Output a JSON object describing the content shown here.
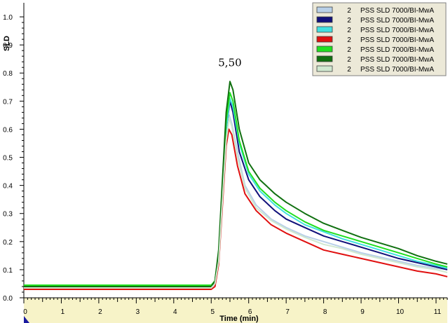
{
  "chart_data": {
    "type": "line",
    "xlabel": "Time (min)",
    "ylabel": "SLD",
    "xlim": [
      0,
      11.3
    ],
    "ylim": [
      0,
      1.05
    ],
    "x_ticks": [
      0,
      1,
      2,
      3,
      4,
      5,
      6,
      7,
      8,
      9,
      10,
      11
    ],
    "y_ticks": [
      0.0,
      0.1,
      0.2,
      0.3,
      0.4,
      0.5,
      0.6,
      0.7,
      0.8,
      0.9,
      1.0
    ],
    "grid": false,
    "legend_position": "top-right",
    "annotations": [
      {
        "text": "5,50",
        "x": 5.5,
        "y": 0.78
      }
    ],
    "series": [
      {
        "name": "PSS SLD 7000/BI-MwA",
        "count": "2",
        "color": "#b8d0e8",
        "points": [
          [
            0,
            0.04
          ],
          [
            1,
            0.04
          ],
          [
            2,
            0.04
          ],
          [
            3,
            0.04
          ],
          [
            4,
            0.04
          ],
          [
            5,
            0.04
          ],
          [
            5.1,
            0.05
          ],
          [
            5.2,
            0.14
          ],
          [
            5.3,
            0.36
          ],
          [
            5.4,
            0.57
          ],
          [
            5.48,
            0.65
          ],
          [
            5.55,
            0.62
          ],
          [
            5.7,
            0.52
          ],
          [
            5.9,
            0.4
          ],
          [
            6.2,
            0.33
          ],
          [
            6.6,
            0.28
          ],
          [
            7,
            0.25
          ],
          [
            7.5,
            0.22
          ],
          [
            8,
            0.2
          ],
          [
            8.5,
            0.18
          ],
          [
            9,
            0.16
          ],
          [
            9.5,
            0.145
          ],
          [
            10,
            0.13
          ],
          [
            10.5,
            0.115
          ],
          [
            11,
            0.105
          ],
          [
            11.3,
            0.1
          ]
        ]
      },
      {
        "name": "PSS SLD 7000/BI-MwA",
        "count": "2",
        "color": "#10107a",
        "points": [
          [
            0,
            0.04
          ],
          [
            1,
            0.04
          ],
          [
            2,
            0.04
          ],
          [
            3,
            0.04
          ],
          [
            4,
            0.04
          ],
          [
            5,
            0.04
          ],
          [
            5.1,
            0.05
          ],
          [
            5.2,
            0.15
          ],
          [
            5.3,
            0.38
          ],
          [
            5.4,
            0.6
          ],
          [
            5.5,
            0.7
          ],
          [
            5.58,
            0.66
          ],
          [
            5.75,
            0.52
          ],
          [
            6,
            0.42
          ],
          [
            6.3,
            0.36
          ],
          [
            6.7,
            0.31
          ],
          [
            7,
            0.28
          ],
          [
            7.5,
            0.25
          ],
          [
            8,
            0.22
          ],
          [
            8.5,
            0.2
          ],
          [
            9,
            0.18
          ],
          [
            9.5,
            0.16
          ],
          [
            10,
            0.14
          ],
          [
            10.5,
            0.125
          ],
          [
            11,
            0.11
          ],
          [
            11.3,
            0.1
          ]
        ]
      },
      {
        "name": "PSS SLD 7000/BI-MwA",
        "count": "2",
        "color": "#40e0e0",
        "points": [
          [
            0,
            0.035
          ],
          [
            1,
            0.035
          ],
          [
            2,
            0.035
          ],
          [
            3,
            0.035
          ],
          [
            4,
            0.035
          ],
          [
            5,
            0.035
          ],
          [
            5.1,
            0.05
          ],
          [
            5.2,
            0.15
          ],
          [
            5.3,
            0.38
          ],
          [
            5.4,
            0.6
          ],
          [
            5.5,
            0.71
          ],
          [
            5.58,
            0.68
          ],
          [
            5.75,
            0.55
          ],
          [
            6,
            0.44
          ],
          [
            6.3,
            0.38
          ],
          [
            6.7,
            0.33
          ],
          [
            7,
            0.3
          ],
          [
            7.5,
            0.26
          ],
          [
            8,
            0.235
          ],
          [
            8.5,
            0.21
          ],
          [
            9,
            0.19
          ],
          [
            9.5,
            0.17
          ],
          [
            10,
            0.15
          ],
          [
            10.5,
            0.13
          ],
          [
            11,
            0.115
          ],
          [
            11.3,
            0.105
          ]
        ]
      },
      {
        "name": "PSS SLD 7000/BI-MwA",
        "count": "2",
        "color": "#e01010",
        "points": [
          [
            0,
            0.03
          ],
          [
            1,
            0.03
          ],
          [
            2,
            0.03
          ],
          [
            3,
            0.03
          ],
          [
            4,
            0.03
          ],
          [
            5,
            0.03
          ],
          [
            5.1,
            0.04
          ],
          [
            5.2,
            0.12
          ],
          [
            5.3,
            0.33
          ],
          [
            5.4,
            0.54
          ],
          [
            5.47,
            0.6
          ],
          [
            5.55,
            0.58
          ],
          [
            5.7,
            0.47
          ],
          [
            5.9,
            0.37
          ],
          [
            6.2,
            0.31
          ],
          [
            6.6,
            0.26
          ],
          [
            7,
            0.23
          ],
          [
            7.5,
            0.2
          ],
          [
            8,
            0.17
          ],
          [
            8.5,
            0.155
          ],
          [
            9,
            0.14
          ],
          [
            9.5,
            0.125
          ],
          [
            10,
            0.11
          ],
          [
            10.5,
            0.095
          ],
          [
            11,
            0.085
          ],
          [
            11.3,
            0.075
          ]
        ]
      },
      {
        "name": "PSS SLD 7000/BI-MwA",
        "count": "2",
        "color": "#20e020",
        "points": [
          [
            0,
            0.045
          ],
          [
            1,
            0.045
          ],
          [
            2,
            0.045
          ],
          [
            3,
            0.045
          ],
          [
            4,
            0.045
          ],
          [
            5,
            0.045
          ],
          [
            5.1,
            0.06
          ],
          [
            5.2,
            0.16
          ],
          [
            5.3,
            0.4
          ],
          [
            5.4,
            0.63
          ],
          [
            5.5,
            0.73
          ],
          [
            5.58,
            0.7
          ],
          [
            5.75,
            0.56
          ],
          [
            6,
            0.45
          ],
          [
            6.3,
            0.39
          ],
          [
            6.7,
            0.34
          ],
          [
            7,
            0.31
          ],
          [
            7.5,
            0.27
          ],
          [
            8,
            0.24
          ],
          [
            8.5,
            0.22
          ],
          [
            9,
            0.2
          ],
          [
            9.5,
            0.18
          ],
          [
            10,
            0.16
          ],
          [
            10.5,
            0.14
          ],
          [
            11,
            0.12
          ],
          [
            11.3,
            0.11
          ]
        ]
      },
      {
        "name": "PSS SLD 7000/BI-MwA",
        "count": "2",
        "color": "#107010",
        "points": [
          [
            0,
            0.04
          ],
          [
            1,
            0.04
          ],
          [
            2,
            0.04
          ],
          [
            3,
            0.04
          ],
          [
            4,
            0.04
          ],
          [
            5,
            0.04
          ],
          [
            5.1,
            0.06
          ],
          [
            5.2,
            0.17
          ],
          [
            5.3,
            0.42
          ],
          [
            5.4,
            0.66
          ],
          [
            5.5,
            0.77
          ],
          [
            5.58,
            0.74
          ],
          [
            5.75,
            0.6
          ],
          [
            6,
            0.48
          ],
          [
            6.3,
            0.42
          ],
          [
            6.7,
            0.37
          ],
          [
            7,
            0.34
          ],
          [
            7.5,
            0.3
          ],
          [
            8,
            0.265
          ],
          [
            8.5,
            0.24
          ],
          [
            9,
            0.215
          ],
          [
            9.5,
            0.195
          ],
          [
            10,
            0.175
          ],
          [
            10.5,
            0.15
          ],
          [
            11,
            0.13
          ],
          [
            11.3,
            0.12
          ]
        ]
      },
      {
        "name": "PSS SLD 7000/BI-MwA",
        "count": "2",
        "color": "#d0e8d0",
        "points": [
          [
            0,
            0.035
          ],
          [
            1,
            0.035
          ],
          [
            2,
            0.035
          ],
          [
            3,
            0.035
          ],
          [
            4,
            0.035
          ],
          [
            5,
            0.035
          ],
          [
            5.1,
            0.05
          ],
          [
            5.2,
            0.13
          ],
          [
            5.3,
            0.35
          ],
          [
            5.4,
            0.56
          ],
          [
            5.48,
            0.64
          ],
          [
            5.55,
            0.61
          ],
          [
            5.7,
            0.5
          ],
          [
            5.9,
            0.39
          ],
          [
            6.2,
            0.32
          ],
          [
            6.6,
            0.275
          ],
          [
            7,
            0.245
          ],
          [
            7.5,
            0.215
          ],
          [
            8,
            0.19
          ],
          [
            8.5,
            0.175
          ],
          [
            9,
            0.155
          ],
          [
            9.5,
            0.14
          ],
          [
            10,
            0.125
          ],
          [
            10.5,
            0.11
          ],
          [
            11,
            0.1
          ],
          [
            11.3,
            0.09
          ]
        ]
      }
    ]
  }
}
